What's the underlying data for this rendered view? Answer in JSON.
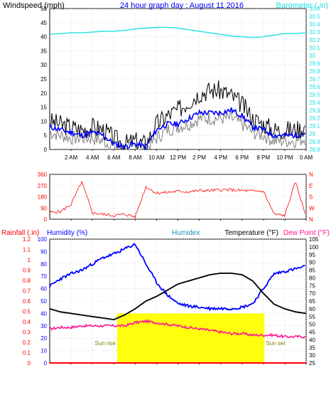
{
  "colors": {
    "bg": "#ffffff",
    "panel": "#ffffff",
    "grid": "#c8c8c8",
    "axis": "#000000",
    "wind_speed": "#0000ff",
    "wind_gust": "#000000",
    "wind_avg": "#808080",
    "barometer": "#20e0e0",
    "direction": "#ff0000",
    "humidity": "#0000ff",
    "humidex": "#2090c0",
    "temperature": "#000000",
    "dewpoint": "#ff1493",
    "rain": "#ff0000",
    "sun": "#ffff00",
    "title_blue": "#0000ff",
    "red": "#ff0000"
  },
  "chart_data": [
    {
      "type": "line",
      "title": "24 hour graph day : August 11 2016",
      "ylabel": "Windspeed (mph)",
      "y2label": "Barometer (.in)",
      "ylim": [
        0,
        50
      ],
      "yticks": [
        "0",
        "5",
        "10",
        "15",
        "20",
        "25",
        "30",
        "35",
        "40",
        "45",
        "50"
      ],
      "y2lim": [
        28.8,
        30.6
      ],
      "y2ticks": [
        "28.8",
        "28.9",
        "29",
        "29.1",
        "29.2",
        "29.3",
        "29.4",
        "29.5",
        "29.6",
        "29.7",
        "29.8",
        "29.9",
        "30",
        "30.1",
        "30.2",
        "30.3",
        "30.4",
        "30.5",
        "30.6"
      ],
      "xticks": [
        "2 AM",
        "4 AM",
        "6 AM",
        "8 AM",
        "10 AM",
        "12 PM",
        "2 PM",
        "4 PM",
        "6 PM",
        "8 PM",
        "10 PM",
        "0 AM"
      ],
      "x_hours": [
        0,
        1,
        2,
        3,
        4,
        5,
        6,
        7,
        8,
        9,
        10,
        11,
        12,
        13,
        14,
        15,
        16,
        17,
        18,
        19,
        20,
        21,
        22,
        23,
        24
      ],
      "series": [
        {
          "name": "Windspeed (mph)",
          "values": [
            8,
            7,
            6,
            5,
            6,
            5,
            2,
            1,
            2,
            1,
            7,
            9,
            9,
            11,
            13,
            13,
            13,
            14,
            12,
            8,
            7,
            5,
            5,
            5,
            6
          ]
        },
        {
          "name": "Gust",
          "values": [
            10,
            9,
            8,
            7,
            8,
            7,
            4,
            2,
            3,
            2,
            9,
            12,
            14,
            17,
            20,
            21,
            21,
            19,
            16,
            11,
            9,
            7,
            7,
            7,
            8
          ]
        },
        {
          "name": "Average",
          "values": [
            6,
            5,
            4,
            4,
            4,
            3,
            1,
            0,
            1,
            0,
            4,
            7,
            8,
            9,
            11,
            11,
            11,
            11,
            9,
            6,
            5,
            3,
            3,
            3,
            4
          ]
        },
        {
          "name": "Barometer (.in)",
          "values": [
            30.27,
            30.28,
            30.29,
            30.29,
            30.3,
            30.31,
            30.31,
            30.32,
            30.34,
            30.35,
            30.36,
            30.36,
            30.35,
            30.33,
            30.31,
            30.29,
            30.27,
            30.25,
            30.24,
            30.23,
            30.24,
            30.26,
            30.28,
            30.28,
            30.29
          ]
        }
      ]
    },
    {
      "type": "scatter",
      "ylim": [
        0,
        360
      ],
      "yticks": [
        "0",
        "90",
        "180",
        "270",
        "360"
      ],
      "y2ticks": [
        "N",
        "W",
        "S",
        "E",
        "N"
      ],
      "x_hours": [
        0,
        1,
        2,
        3,
        4,
        5,
        6,
        7,
        8,
        9,
        10,
        11,
        12,
        13,
        14,
        15,
        16,
        17,
        18,
        19,
        20,
        21,
        22,
        23,
        24
      ],
      "series": [
        {
          "name": "Wind direction",
          "values": [
            55,
            60,
            120,
            300,
            50,
            40,
            30,
            40,
            20,
            260,
            210,
            215,
            225,
            220,
            230,
            230,
            235,
            235,
            230,
            225,
            225,
            40,
            30,
            300,
            20
          ]
        }
      ]
    },
    {
      "type": "line",
      "ylabel": "Rainfall (.in)",
      "ylabel2": "Humidity (%)",
      "y3label": "Humidex",
      "y4label": "Temperature (°F)",
      "y5label": "Dew Point (°F)",
      "ylim": [
        0,
        100
      ],
      "yticks": [
        "0",
        "10",
        "20",
        "30",
        "40",
        "50",
        "60",
        "70",
        "80",
        "90",
        "100"
      ],
      "rain_ticks": [
        "0",
        "0.1",
        "0.2",
        "0.3",
        "0.4",
        "0.5",
        "0.6",
        "0.7",
        "0.8",
        "0.9",
        "1",
        "1.1",
        "1.2"
      ],
      "temp_ticks": [
        "25",
        "30",
        "35",
        "40",
        "45",
        "50",
        "55",
        "60",
        "65",
        "70",
        "75",
        "80",
        "85",
        "90",
        "95",
        "100",
        "105"
      ],
      "x_hours": [
        0,
        1,
        2,
        3,
        4,
        5,
        6,
        7,
        8,
        9,
        10,
        11,
        12,
        13,
        14,
        15,
        16,
        17,
        18,
        19,
        20,
        21,
        22,
        23,
        24
      ],
      "series": [
        {
          "name": "Humidity (%)",
          "values": [
            62,
            68,
            72,
            75,
            80,
            85,
            88,
            92,
            96,
            80,
            65,
            55,
            48,
            46,
            45,
            44,
            44,
            44,
            45,
            48,
            60,
            72,
            74,
            76,
            78
          ]
        },
        {
          "name": "Humidex",
          "values": [
            60,
            58,
            57,
            56,
            55,
            54,
            53,
            56,
            60,
            65,
            68,
            72,
            76,
            78,
            80,
            82,
            83,
            83,
            82,
            78,
            70,
            63,
            60,
            58,
            57
          ]
        },
        {
          "name": "Temperature (°F)",
          "values": [
            60,
            58,
            57,
            56,
            55,
            54,
            53,
            56,
            60,
            65,
            68,
            72,
            76,
            78,
            80,
            82,
            83,
            83,
            82,
            78,
            70,
            63,
            60,
            58,
            57
          ]
        },
        {
          "name": "Dew Point (°F)",
          "values": [
            47,
            48,
            48,
            49,
            49,
            49,
            49,
            49,
            51,
            52,
            51,
            50,
            49,
            48,
            47,
            46,
            45,
            44,
            44,
            43,
            43,
            43,
            42,
            42,
            42
          ]
        },
        {
          "name": "Rainfall (.in)",
          "values": [
            0,
            0,
            0,
            0,
            0,
            0,
            0,
            0,
            0,
            0,
            0,
            0,
            0,
            0,
            0,
            0,
            0,
            0,
            0,
            0,
            0,
            0,
            0,
            0,
            0
          ]
        }
      ],
      "sun": {
        "rise_hour": 6.3,
        "set_hour": 20.1,
        "rise_label": "Sun rise",
        "set_label": "Sun set"
      }
    }
  ]
}
